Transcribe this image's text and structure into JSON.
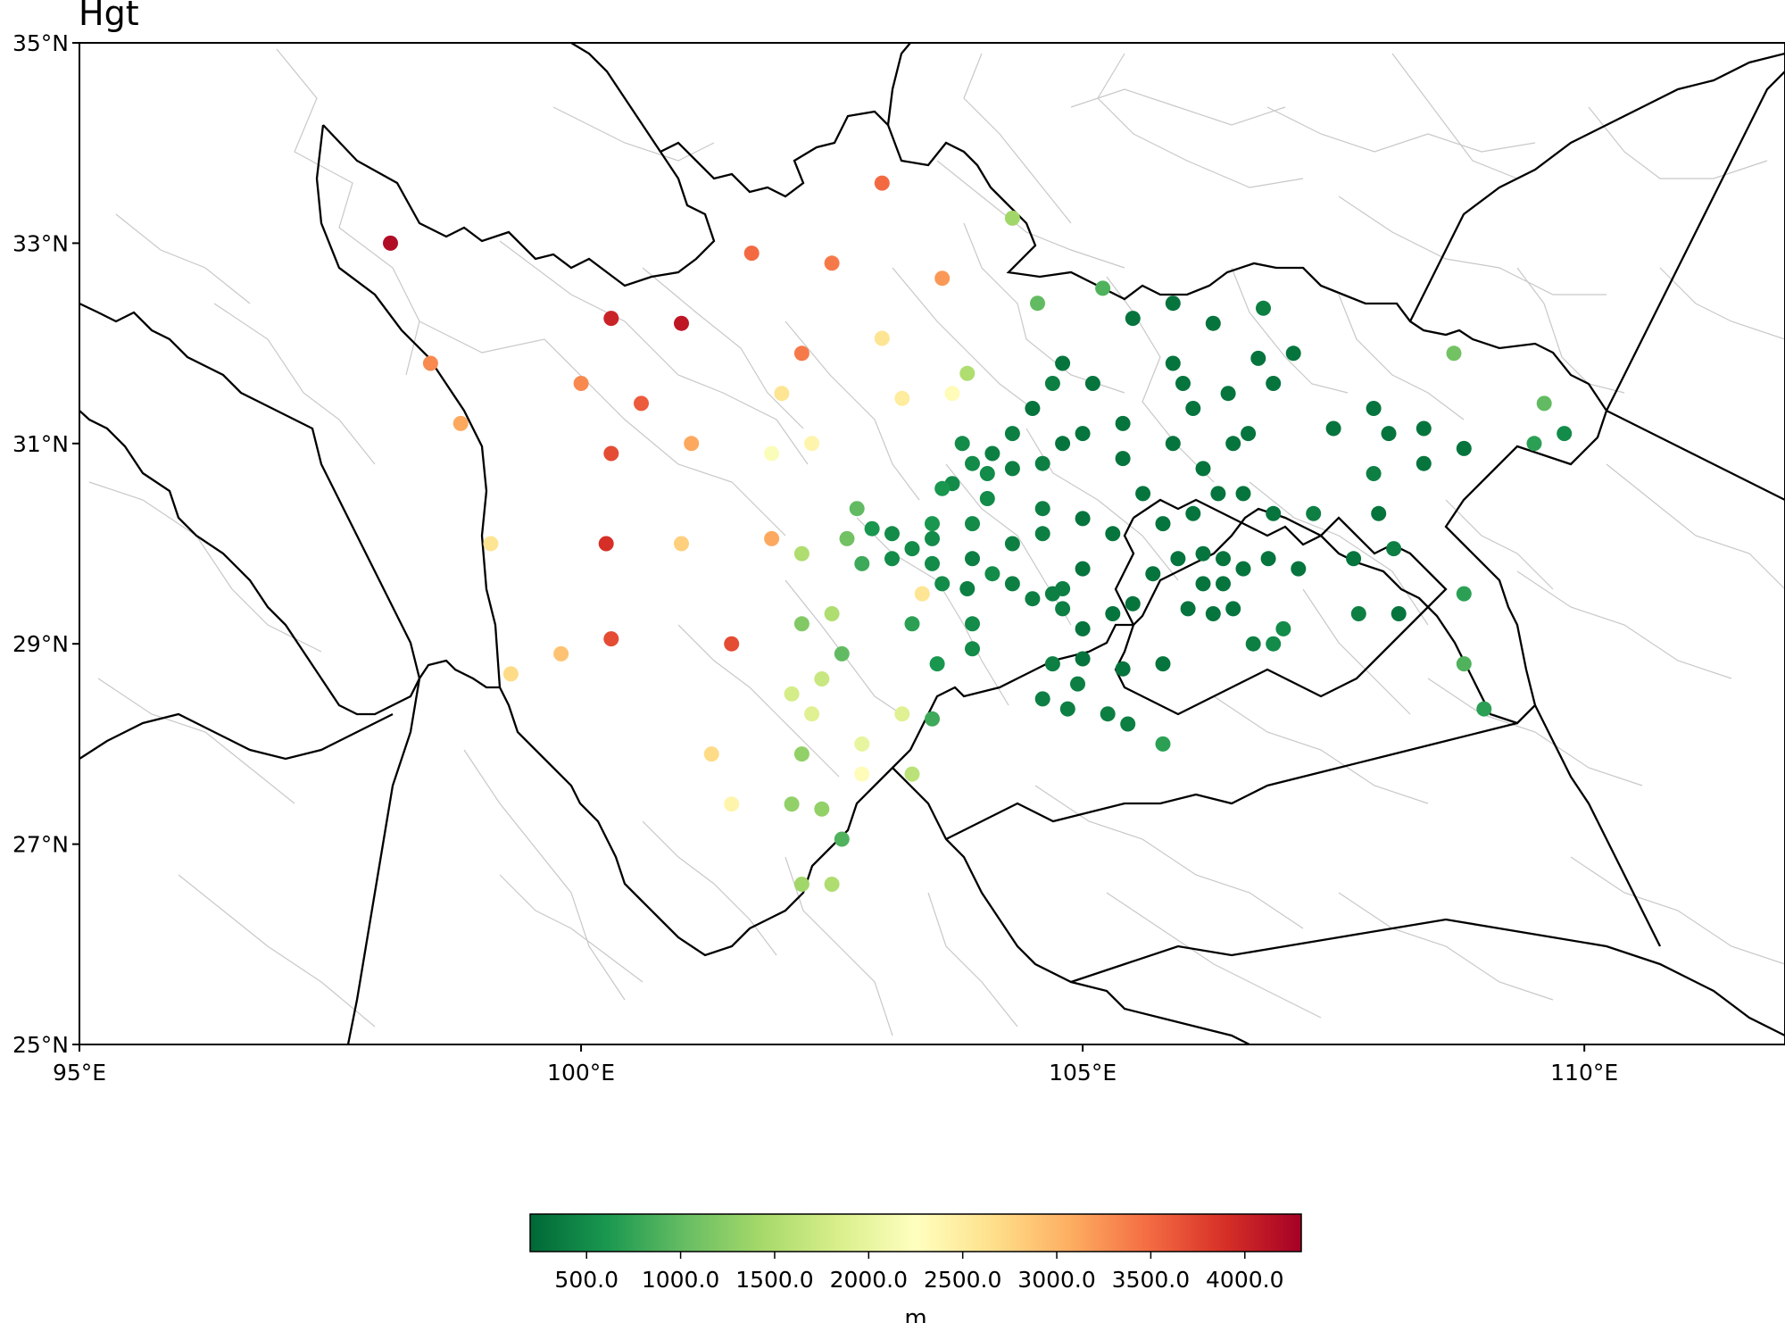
{
  "title": "Hgt",
  "map": {
    "lon_range": [
      95,
      112
    ],
    "lat_range": [
      25,
      35
    ],
    "x_ticks": [
      {
        "lon": 95,
        "label": "95°E"
      },
      {
        "lon": 100,
        "label": "100°E"
      },
      {
        "lon": 105,
        "label": "105°E"
      },
      {
        "lon": 110,
        "label": "110°E"
      }
    ],
    "y_ticks": [
      {
        "lat": 35,
        "label": "35°N"
      },
      {
        "lat": 33,
        "label": "33°N"
      },
      {
        "lat": 31,
        "label": "31°N"
      },
      {
        "lat": 29,
        "label": "29°N"
      },
      {
        "lat": 27,
        "label": "27°N"
      },
      {
        "lat": 25,
        "label": "25°N"
      }
    ]
  },
  "colorbar": {
    "label": "m",
    "vmin": 200,
    "vmax": 4300,
    "ticks": [
      {
        "value": 500,
        "label": "500.0"
      },
      {
        "value": 1000,
        "label": "1000.0"
      },
      {
        "value": 1500,
        "label": "1500.0"
      },
      {
        "value": 2000,
        "label": "2000.0"
      },
      {
        "value": 2500,
        "label": "2500.0"
      },
      {
        "value": 3000,
        "label": "3000.0"
      },
      {
        "value": 3500,
        "label": "3500.0"
      },
      {
        "value": 4000,
        "label": "4000.0"
      }
    ],
    "colormap": [
      "#006837",
      "#1a9850",
      "#66bd63",
      "#a6d96a",
      "#d9ef8b",
      "#ffffbf",
      "#fee08b",
      "#fdae61",
      "#f46d43",
      "#d73027",
      "#a50026"
    ]
  },
  "stations": [
    [
      98.1,
      33.0,
      4200
    ],
    [
      103.0,
      33.6,
      3500
    ],
    [
      101.7,
      32.9,
      3500
    ],
    [
      102.5,
      32.8,
      3400
    ],
    [
      103.6,
      32.65,
      3200
    ],
    [
      100.3,
      32.25,
      4000
    ],
    [
      101.0,
      32.2,
      4100
    ],
    [
      98.5,
      31.8,
      3300
    ],
    [
      102.2,
      31.9,
      3400
    ],
    [
      103.0,
      32.05,
      2600
    ],
    [
      100.0,
      31.6,
      3300
    ],
    [
      100.6,
      31.4,
      3600
    ],
    [
      102.0,
      31.5,
      2600
    ],
    [
      103.2,
      31.45,
      2500
    ],
    [
      103.7,
      31.5,
      2300
    ],
    [
      98.8,
      31.2,
      3100
    ],
    [
      101.1,
      31.0,
      3100
    ],
    [
      100.3,
      30.9,
      3700
    ],
    [
      101.9,
      30.9,
      2200
    ],
    [
      102.3,
      31.0,
      2400
    ],
    [
      99.1,
      30.0,
      2600
    ],
    [
      100.25,
      30.0,
      3900
    ],
    [
      101.0,
      30.0,
      2800
    ],
    [
      101.9,
      30.05,
      3100
    ],
    [
      102.2,
      29.9,
      1500
    ],
    [
      103.4,
      29.5,
      2600
    ],
    [
      99.3,
      28.7,
      2700
    ],
    [
      99.8,
      28.9,
      2900
    ],
    [
      100.3,
      29.05,
      3700
    ],
    [
      101.5,
      29.0,
      3700
    ],
    [
      101.3,
      27.9,
      2700
    ],
    [
      101.5,
      27.4,
      2400
    ],
    [
      102.1,
      28.5,
      1800
    ],
    [
      102.4,
      28.65,
      1700
    ],
    [
      102.3,
      28.3,
      1900
    ],
    [
      102.8,
      28.0,
      2000
    ],
    [
      102.8,
      27.7,
      2300
    ],
    [
      103.2,
      28.3,
      1900
    ],
    [
      103.3,
      27.7,
      1600
    ],
    [
      102.2,
      27.9,
      1300
    ],
    [
      102.1,
      27.4,
      1300
    ],
    [
      102.4,
      27.35,
      1300
    ],
    [
      102.6,
      27.05,
      900
    ],
    [
      102.2,
      26.6,
      1400
    ],
    [
      102.5,
      26.6,
      1500
    ],
    [
      102.6,
      28.9,
      1000
    ],
    [
      102.2,
      29.2,
      1200
    ],
    [
      102.5,
      29.3,
      1500
    ],
    [
      102.75,
      30.35,
      1000
    ],
    [
      102.65,
      30.05,
      1100
    ],
    [
      103.85,
      31.7,
      1500
    ],
    [
      104.3,
      33.25,
      1400
    ],
    [
      104.55,
      32.4,
      1000
    ],
    [
      105.2,
      32.55,
      900
    ],
    [
      108.7,
      31.9,
      1100
    ],
    [
      109.6,
      31.4,
      1000
    ],
    [
      109.5,
      31.0,
      700
    ],
    [
      109.8,
      31.1,
      500
    ],
    [
      108.8,
      29.5,
      700
    ],
    [
      108.8,
      28.8,
      900
    ],
    [
      109.0,
      28.35,
      700
    ],
    [
      103.5,
      28.25,
      800
    ],
    [
      105.8,
      28.0,
      700
    ],
    [
      105.5,
      32.25,
      300
    ],
    [
      105.9,
      32.4,
      300
    ],
    [
      106.3,
      32.2,
      300
    ],
    [
      106.8,
      32.35,
      400
    ],
    [
      105.1,
      31.6,
      300
    ],
    [
      104.8,
      31.8,
      300
    ],
    [
      104.7,
      31.6,
      400
    ],
    [
      104.5,
      31.35,
      300
    ],
    [
      105.4,
      31.2,
      300
    ],
    [
      105.9,
      31.8,
      300
    ],
    [
      106.0,
      31.6,
      300
    ],
    [
      106.1,
      31.35,
      300
    ],
    [
      106.45,
      31.5,
      300
    ],
    [
      106.75,
      31.85,
      300
    ],
    [
      107.1,
      31.9,
      300
    ],
    [
      106.9,
      31.6,
      300
    ],
    [
      104.8,
      31.0,
      300
    ],
    [
      104.3,
      31.1,
      400
    ],
    [
      104.1,
      30.9,
      400
    ],
    [
      103.9,
      30.8,
      500
    ],
    [
      103.7,
      30.6,
      500
    ],
    [
      103.8,
      31.0,
      500
    ],
    [
      104.05,
      30.7,
      500
    ],
    [
      104.3,
      30.75,
      400
    ],
    [
      104.6,
      30.8,
      400
    ],
    [
      105.0,
      31.1,
      300
    ],
    [
      105.4,
      30.85,
      300
    ],
    [
      105.9,
      31.0,
      300
    ],
    [
      106.2,
      30.75,
      300
    ],
    [
      106.5,
      31.0,
      300
    ],
    [
      106.65,
      31.1,
      300
    ],
    [
      107.5,
      31.15,
      300
    ],
    [
      107.9,
      31.35,
      300
    ],
    [
      108.05,
      31.1,
      300
    ],
    [
      108.4,
      31.15,
      300
    ],
    [
      108.4,
      30.8,
      300
    ],
    [
      108.8,
      30.95,
      300
    ],
    [
      107.9,
      30.7,
      400
    ],
    [
      104.05,
      30.45,
      500
    ],
    [
      103.6,
      30.55,
      600
    ],
    [
      104.6,
      30.35,
      400
    ],
    [
      105.0,
      30.25,
      300
    ],
    [
      105.3,
      30.1,
      300
    ],
    [
      105.6,
      30.5,
      300
    ],
    [
      105.8,
      30.2,
      300
    ],
    [
      106.1,
      30.3,
      300
    ],
    [
      106.35,
      30.5,
      300
    ],
    [
      106.6,
      30.5,
      300
    ],
    [
      106.9,
      30.3,
      300
    ],
    [
      107.3,
      30.3,
      400
    ],
    [
      103.9,
      30.2,
      500
    ],
    [
      103.5,
      30.2,
      600
    ],
    [
      103.5,
      30.05,
      500
    ],
    [
      103.3,
      29.95,
      500
    ],
    [
      103.1,
      30.1,
      500
    ],
    [
      102.9,
      30.15,
      600
    ],
    [
      102.8,
      29.8,
      800
    ],
    [
      103.1,
      29.85,
      500
    ],
    [
      103.5,
      29.8,
      500
    ],
    [
      103.9,
      29.85,
      400
    ],
    [
      104.3,
      30.0,
      400
    ],
    [
      104.6,
      30.1,
      400
    ],
    [
      104.1,
      29.7,
      500
    ],
    [
      104.3,
      29.6,
      400
    ],
    [
      104.8,
      29.55,
      400
    ],
    [
      105.0,
      29.75,
      300
    ],
    [
      105.7,
      29.7,
      300
    ],
    [
      105.95,
      29.85,
      300
    ],
    [
      106.2,
      29.9,
      300
    ],
    [
      106.4,
      29.85,
      300
    ],
    [
      106.6,
      29.75,
      300
    ],
    [
      106.2,
      29.6,
      300
    ],
    [
      106.4,
      29.6,
      300
    ],
    [
      106.05,
      29.35,
      300
    ],
    [
      106.3,
      29.3,
      300
    ],
    [
      106.5,
      29.35,
      300
    ],
    [
      105.5,
      29.4,
      300
    ],
    [
      105.3,
      29.3,
      300
    ],
    [
      104.5,
      29.45,
      400
    ],
    [
      104.7,
      29.5,
      400
    ],
    [
      104.8,
      29.35,
      400
    ],
    [
      103.6,
      29.6,
      500
    ],
    [
      103.85,
      29.55,
      400
    ],
    [
      103.9,
      29.2,
      500
    ],
    [
      103.3,
      29.2,
      700
    ],
    [
      103.9,
      28.95,
      500
    ],
    [
      104.7,
      28.8,
      400
    ],
    [
      105.0,
      28.85,
      300
    ],
    [
      105.4,
      28.75,
      300
    ],
    [
      105.8,
      28.8,
      300
    ],
    [
      103.55,
      28.8,
      600
    ],
    [
      104.6,
      28.45,
      400
    ],
    [
      104.85,
      28.35,
      400
    ],
    [
      104.95,
      28.6,
      400
    ],
    [
      105.25,
      28.3,
      400
    ],
    [
      105.45,
      28.2,
      400
    ],
    [
      105.0,
      29.15,
      300
    ],
    [
      106.7,
      29.0,
      400
    ],
    [
      106.9,
      29.0,
      500
    ],
    [
      107.0,
      29.15,
      500
    ],
    [
      106.85,
      29.85,
      300
    ],
    [
      107.15,
      29.75,
      300
    ],
    [
      107.7,
      29.85,
      300
    ],
    [
      107.75,
      29.3,
      400
    ],
    [
      108.15,
      29.3,
      300
    ],
    [
      107.95,
      30.3,
      300
    ],
    [
      108.1,
      29.95,
      400
    ]
  ]
}
